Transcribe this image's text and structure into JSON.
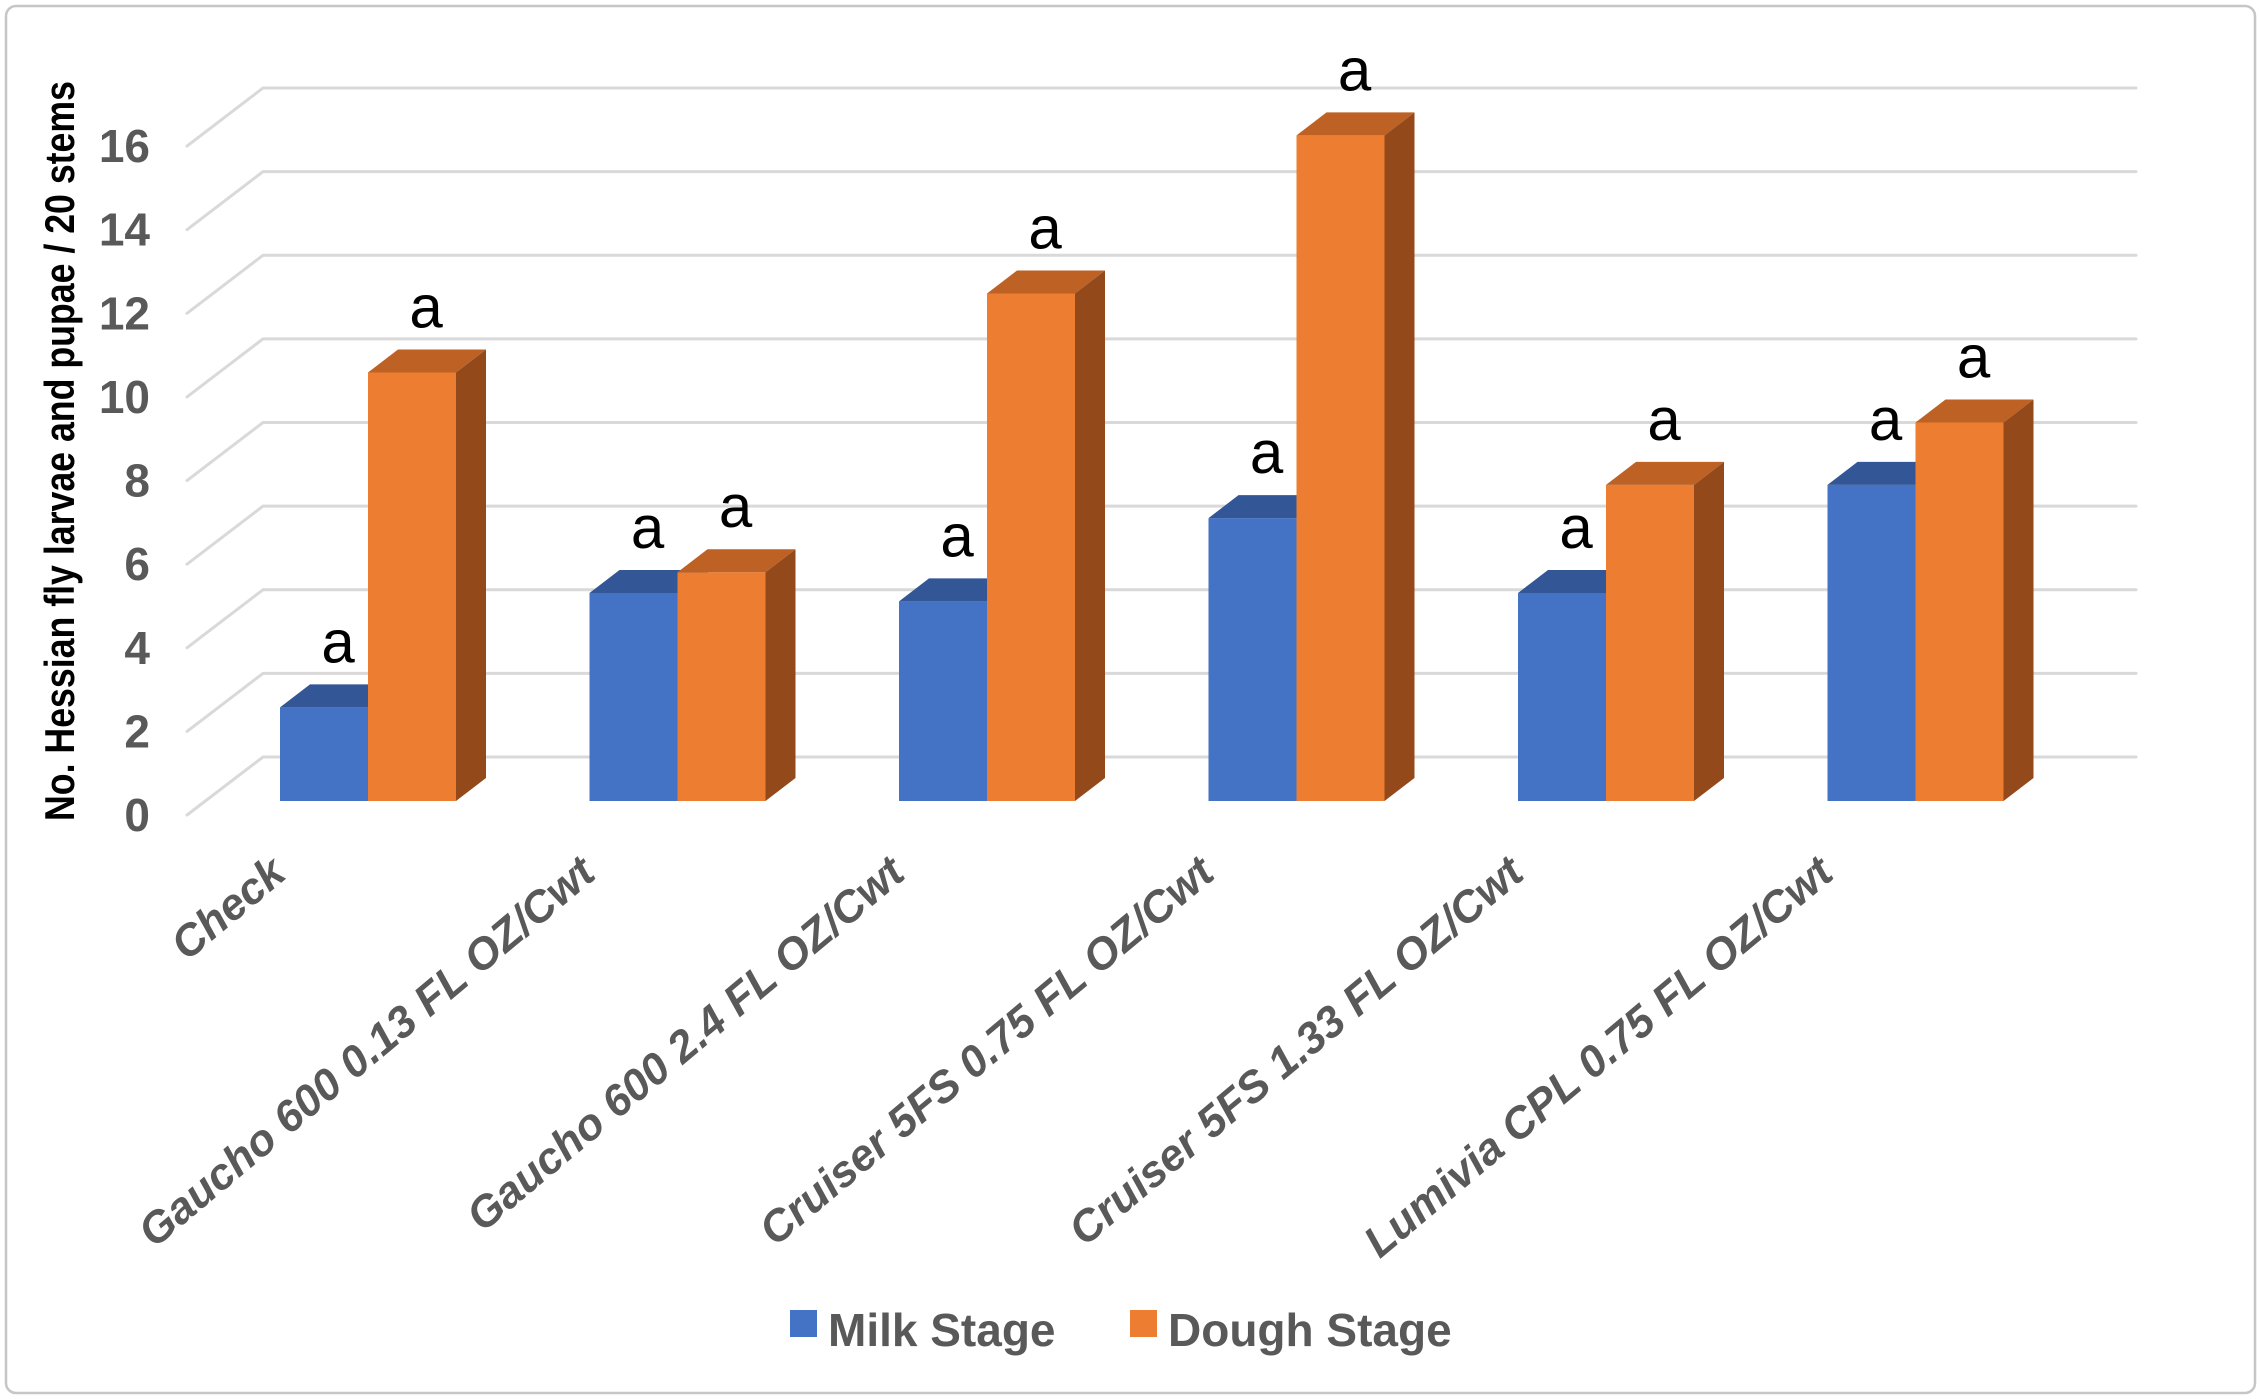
{
  "chart_data": {
    "type": "bar",
    "subtype": "3d-clustered-column",
    "title": "",
    "xlabel": "",
    "ylabel": "No. Hessian fly larvae and pupae / 20 stems",
    "ylim": [
      0,
      16
    ],
    "ytick_step": 2,
    "ytick_labels": [
      "0",
      "2",
      "4",
      "6",
      "8",
      "10",
      "12",
      "14",
      "16"
    ],
    "grid": true,
    "legend_position": "bottom",
    "categories": [
      "Check",
      "Gaucho 600 0.13 FL OZ/Cwt",
      "Gaucho 600 2.4 FL OZ/Cwt",
      "Cruiser 5FS 0.75 FL OZ/Cwt",
      "Cruiser 5FS 1.33 FL OZ/Cwt",
      "Lumivia CPL 0.75 FL OZ/Cwt"
    ],
    "series": [
      {
        "name": "Milk Stage",
        "values": [
          2.25,
          5.0,
          4.8,
          6.8,
          5.0,
          7.6
        ],
        "point_labels": [
          "a",
          "a",
          "a",
          "a",
          "a",
          "a"
        ],
        "color_front": "#4472C4",
        "color_top": "#335697",
        "color_side": "#27457C"
      },
      {
        "name": "Dough Stage",
        "values": [
          10.3,
          5.5,
          12.2,
          16.0,
          7.6,
          9.1
        ],
        "point_labels": [
          "a",
          "a",
          "a",
          "a",
          "a",
          "a"
        ],
        "color_front": "#ED7D31",
        "color_top": "#BD6224",
        "color_side": "#94491B"
      }
    ]
  },
  "legend": {
    "items": [
      {
        "label": "Milk Stage",
        "color": "#4472C4"
      },
      {
        "label": "Dough Stage",
        "color": "#ED7D31"
      }
    ]
  },
  "colors": {
    "gridline": "#D9D9D9",
    "axis_text": "#595959",
    "category_text": "#595959",
    "point_label_text": "#000000",
    "y_title_text": "#000000",
    "legend_text": "#595959",
    "frame_border": "#C6C6C6",
    "background": "#FFFFFF"
  }
}
